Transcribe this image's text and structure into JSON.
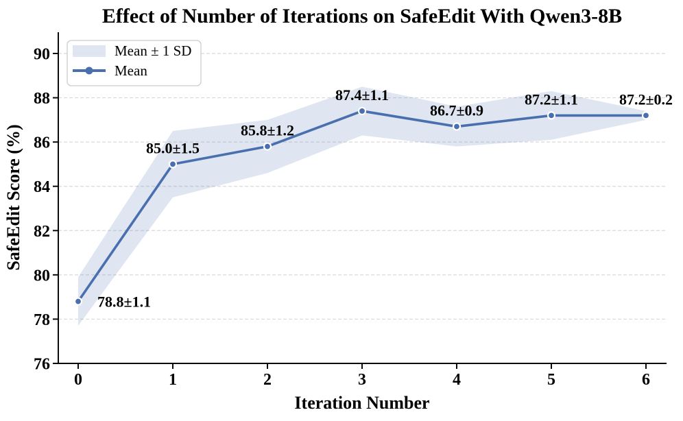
{
  "chart_data": {
    "type": "line",
    "title": "Effect of Number of Iterations on SafeEdit With Qwen3-8B",
    "xlabel": "Iteration Number",
    "ylabel": "SafeEdit Score (%)",
    "x": [
      0,
      1,
      2,
      3,
      4,
      5,
      6
    ],
    "series": [
      {
        "name": "Mean",
        "values": [
          78.8,
          85.0,
          85.8,
          87.4,
          86.7,
          87.2,
          87.2
        ],
        "sd": [
          1.1,
          1.5,
          1.2,
          1.1,
          0.9,
          1.1,
          0.2
        ]
      }
    ],
    "point_labels": [
      "78.8±1.1",
      "85.0±1.5",
      "85.8±1.2",
      "87.4±1.1",
      "86.7±0.9",
      "87.2±1.1",
      "87.2±0.2"
    ],
    "xticks": [
      "0",
      "1",
      "2",
      "3",
      "4",
      "5",
      "6"
    ],
    "yticks": [
      "76",
      "78",
      "80",
      "82",
      "84",
      "86",
      "88",
      "90"
    ],
    "ylim": [
      76,
      91
    ],
    "grid": {
      "axis": "y",
      "style": "dashed"
    },
    "legend": {
      "position": "upper left",
      "entries": [
        {
          "swatch": "band",
          "label": "Mean ± 1 SD"
        },
        {
          "swatch": "line-marker",
          "label": "Mean"
        }
      ]
    },
    "colors": {
      "line": "#4a6fae",
      "marker": "#4a6fae",
      "marker_edge": "#ffffff",
      "band": "rgba(76,114,176,0.18)",
      "grid": "#d9d9d9",
      "spine": "#0a0a0a",
      "legend_border": "#cccccc",
      "text": "#000000"
    }
  }
}
